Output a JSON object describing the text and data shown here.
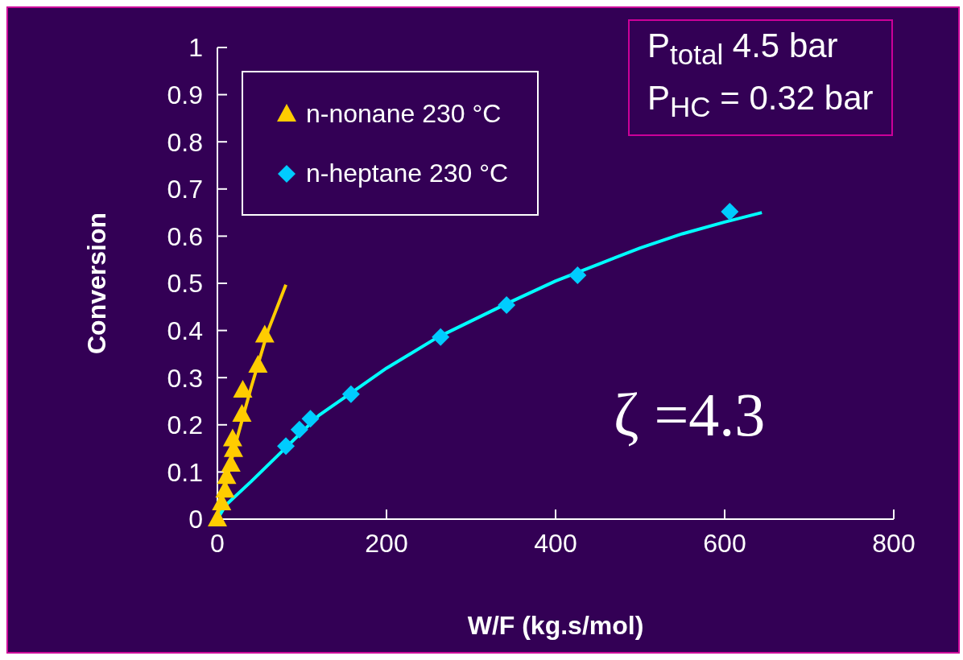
{
  "chart_data": {
    "type": "scatter",
    "xlabel": "W/F (kg.s/mol)",
    "ylabel": "Conversion",
    "xlim": [
      0,
      800
    ],
    "xticks": [
      0,
      200,
      400,
      600,
      800
    ],
    "ylim": [
      0,
      1
    ],
    "yticks": [
      0,
      0.1,
      0.2,
      0.3,
      0.4,
      0.5,
      0.6,
      0.7,
      0.8,
      0.9,
      1
    ],
    "legend": "top left",
    "annotations": [
      "P$_{total}$ 4.5 bar\nP$_{HC}$ = 0.32 bar",
      "ζ =4.3"
    ],
    "series": [
      {
        "name": "n-nonane 230 °C",
        "color": "#ffcc00",
        "marker": "triangle",
        "x": [
          0,
          5,
          9,
          11,
          16,
          19,
          18,
          29,
          30,
          48,
          56
        ],
        "values": [
          0,
          0.034,
          0.061,
          0.09,
          0.116,
          0.147,
          0.17,
          0.222,
          0.273,
          0.326,
          0.39
        ]
      },
      {
        "name": "n-heptane 230 °C",
        "color": "#00ccff",
        "marker": "diamond",
        "x": [
          81,
          97,
          110,
          158,
          264,
          342,
          426,
          606
        ],
        "values": [
          0.155,
          0.19,
          0.213,
          0.265,
          0.386,
          0.454,
          0.517,
          0.652
        ]
      },
      {
        "type": "line",
        "color": "#ffcc00",
        "marker": "none",
        "x": [
          0,
          20,
          40,
          60,
          81
        ],
        "values": [
          0,
          0.15,
          0.28,
          0.4,
          0.497
        ]
      },
      {
        "type": "line",
        "color": "#00ffff",
        "marker": "none",
        "x": [
          0,
          10,
          40,
          80,
          120,
          160,
          200,
          260,
          300,
          340,
          400,
          450,
          500,
          550,
          600,
          644
        ],
        "values": [
          0,
          0.03,
          0.08,
          0.15,
          0.22,
          0.27,
          0.32,
          0.385,
          0.42,
          0.455,
          0.505,
          0.54,
          0.575,
          0.605,
          0.63,
          0.65
        ]
      }
    ]
  }
}
